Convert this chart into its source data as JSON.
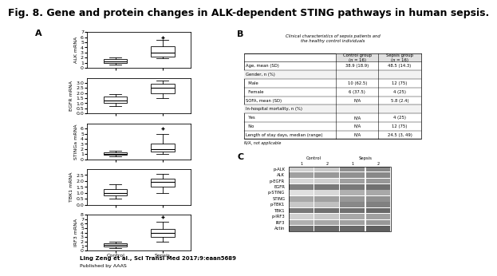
{
  "title": "Fig. 8. Gene and protein changes in ALK-dependent STING pathways in human sepsis.",
  "title_fontsize": 9,
  "citation": "Ling Zeng et al., Sci Transl Med 2017;9:eaan5689",
  "published_by": "Published by AAAS",
  "panel_A_label": "A",
  "boxplot_ylabel_fontsize": 4.5,
  "boxplots": [
    {
      "ylabel": "ALK mRNA",
      "control_box": {
        "q1": 1.0,
        "median": 1.3,
        "q3": 1.7,
        "whisker_low": 0.7,
        "whisker_high": 2.0,
        "fliers": []
      },
      "sepsis_box": {
        "q1": 2.2,
        "median": 3.0,
        "q3": 4.2,
        "whisker_low": 1.8,
        "whisker_high": 5.5,
        "fliers": [
          6.0
        ]
      },
      "ylim": [
        0,
        7
      ],
      "yticks": [
        0,
        1,
        2,
        3,
        4,
        5,
        6,
        7
      ]
    },
    {
      "ylabel": "EGFR mRNA",
      "control_box": {
        "q1": 1.0,
        "median": 1.3,
        "q3": 1.7,
        "whisker_low": 0.7,
        "whisker_high": 1.9,
        "fliers": []
      },
      "sepsis_box": {
        "q1": 2.0,
        "median": 2.5,
        "q3": 2.9,
        "whisker_low": 1.5,
        "whisker_high": 3.2,
        "fliers": []
      },
      "ylim": [
        0.0,
        3.5
      ],
      "yticks": [
        0.0,
        0.5,
        1.0,
        1.5,
        2.0,
        2.5,
        3.0
      ]
    },
    {
      "ylabel": "STINGa mRNA",
      "control_box": {
        "q1": 0.8,
        "median": 1.0,
        "q3": 1.3,
        "whisker_low": 0.5,
        "whisker_high": 1.6,
        "fliers": []
      },
      "sepsis_box": {
        "q1": 1.5,
        "median": 2.0,
        "q3": 3.0,
        "whisker_low": 1.0,
        "whisker_high": 5.0,
        "fliers": [
          6.0
        ]
      },
      "ylim": [
        0,
        7
      ],
      "yticks": [
        0,
        1,
        2,
        3,
        4,
        5,
        6
      ]
    },
    {
      "ylabel": "TBK1 mRNA",
      "control_box": {
        "q1": 0.8,
        "median": 1.0,
        "q3": 1.3,
        "whisker_low": 0.5,
        "whisker_high": 1.7,
        "fliers": []
      },
      "sepsis_box": {
        "q1": 1.5,
        "median": 1.9,
        "q3": 2.2,
        "whisker_low": 1.0,
        "whisker_high": 2.6,
        "fliers": []
      },
      "ylim": [
        0.0,
        3.0
      ],
      "yticks": [
        0.0,
        0.5,
        1.0,
        1.5,
        2.0,
        2.5
      ]
    },
    {
      "ylabel": "IRF3 mRNA",
      "control_box": {
        "q1": 0.9,
        "median": 1.2,
        "q3": 1.6,
        "whisker_low": 0.5,
        "whisker_high": 2.0,
        "fliers": []
      },
      "sepsis_box": {
        "q1": 3.0,
        "median": 4.0,
        "q3": 4.8,
        "whisker_low": 2.0,
        "whisker_high": 6.5,
        "fliers": [
          7.5
        ]
      },
      "ylim": [
        0,
        8
      ],
      "yticks": [
        0,
        1,
        2,
        3,
        4,
        5,
        6,
        7,
        8
      ]
    }
  ],
  "panel_B_label": "B",
  "table_title": "Clinical characteristics of sepsis patients and\nthe healthy control individuals",
  "table_headers": [
    "",
    "Control group\n(n = 16)",
    "Sepsis group\n(n = 16)"
  ],
  "table_rows": [
    [
      "Age, mean (SD)",
      "38.9 (18.9)",
      "48.5 (14.3)"
    ],
    [
      "Gender, n (%)",
      "",
      ""
    ],
    [
      "  Male",
      "10 (62.5)",
      "12 (75)"
    ],
    [
      "  Female",
      "6 (37.5)",
      "4 (25)"
    ],
    [
      "SOFA, mean (SD)",
      "N/A",
      "5.8 (2.4)"
    ],
    [
      "In-hospital mortality, n (%)",
      "",
      ""
    ],
    [
      "  Yes",
      "N/A",
      "4 (25)"
    ],
    [
      "  No",
      "N/A",
      "12 (75)"
    ],
    [
      "Length of stay days, median (range)",
      "N/A",
      "24.5 (3, 49)"
    ]
  ],
  "table_note": "N/A, not applicable",
  "panel_C_label": "C",
  "western_labels": [
    "p-ALK",
    "ALK",
    "p-EGFR",
    "EGFR",
    "p-STING",
    "STING",
    "p-TBK1",
    "TBK1",
    "p-IRF3",
    "IRF3",
    "Actin"
  ],
  "western_col_headers": [
    "Control",
    "Sepsis"
  ],
  "band_colors": [
    [
      "#d0d0d0",
      "#c8c8c8",
      "#909090",
      "#888888"
    ],
    [
      "#a0a0a0",
      "#989898",
      "#909090",
      "#888888"
    ],
    [
      "#d8d8d8",
      "#d0d0d0",
      "#a0a0a0",
      "#989898"
    ],
    [
      "#808080",
      "#787878",
      "#787878",
      "#707070"
    ],
    [
      "#e0e0e0",
      "#d8d8d8",
      "#b0b0b0",
      "#a8a8a8"
    ],
    [
      "#a8a8a8",
      "#a0a0a0",
      "#989898",
      "#909090"
    ],
    [
      "#c8c8c8",
      "#c0c0c0",
      "#888888",
      "#808080"
    ],
    [
      "#787878",
      "#707070",
      "#707070",
      "#686868"
    ],
    [
      "#d0d0d0",
      "#c8c8c8",
      "#a8a8a8",
      "#a0a0a0"
    ],
    [
      "#b0b0b0",
      "#a8a8a8",
      "#a0a0a0",
      "#989898"
    ],
    [
      "#707070",
      "#686868",
      "#686868",
      "#606060"
    ]
  ],
  "x_tick_labels": [
    "Control",
    "Sepsis"
  ],
  "tick_fontsize": 4.5
}
